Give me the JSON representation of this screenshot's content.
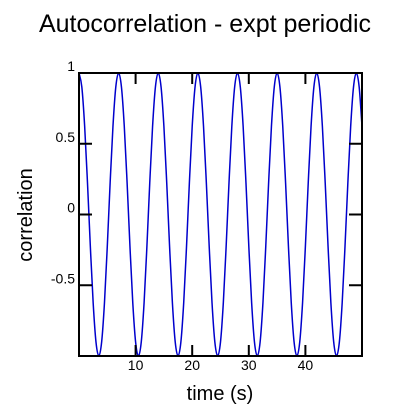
{
  "chart_data": {
    "type": "line",
    "title": "Autocorrelation - expt periodic",
    "xlabel": "time (s)",
    "ylabel": "correlation",
    "xlim": [
      0,
      50
    ],
    "ylim": [
      -1,
      1
    ],
    "xticks": [
      10,
      20,
      30,
      40
    ],
    "yticks": [
      -0.5,
      0,
      0.5,
      1
    ],
    "grid": false,
    "series": [
      {
        "color": "#0000cc",
        "x": [
          0,
          0.5,
          1,
          1.5,
          2,
          2.5,
          3,
          3.5,
          4,
          4.5,
          5,
          5.5,
          6,
          6.5,
          7,
          7.5,
          8,
          8.5,
          9,
          9.5,
          10,
          10.5,
          11,
          11.5,
          12,
          12.5,
          13,
          13.5,
          14,
          14.5,
          15,
          15.5,
          16,
          16.5,
          17,
          17.5,
          18,
          18.5,
          19,
          19.5,
          20,
          20.5,
          21,
          21.5,
          22,
          22.5,
          23,
          23.5,
          24,
          24.5,
          25,
          25.5,
          26,
          26.5,
          27,
          27.5,
          28,
          28.5,
          29,
          29.5,
          30,
          30.5,
          31,
          31.5,
          32,
          32.5,
          33,
          33.5,
          34,
          34.5,
          35,
          35.5,
          36,
          36.5,
          37,
          37.5,
          38,
          38.5,
          39,
          39.5,
          40,
          40.5,
          41,
          41.5,
          42,
          42.5,
          43,
          43.5,
          44,
          44.5,
          45,
          45.5,
          46,
          46.5,
          47,
          47.5,
          48,
          48.5,
          49,
          49.5,
          50
        ],
        "values": [
          1,
          0.901,
          0.623,
          0.223,
          -0.223,
          -0.623,
          -0.901,
          -1,
          -0.901,
          -0.623,
          -0.223,
          0.223,
          0.623,
          0.901,
          1,
          0.901,
          0.623,
          0.223,
          -0.223,
          -0.623,
          -0.901,
          -1,
          -0.901,
          -0.623,
          -0.223,
          0.223,
          0.623,
          0.901,
          1,
          0.901,
          0.623,
          0.223,
          -0.223,
          -0.623,
          -0.901,
          -1,
          -0.901,
          -0.623,
          -0.223,
          0.223,
          0.623,
          0.901,
          1,
          0.901,
          0.623,
          0.223,
          -0.223,
          -0.623,
          -0.901,
          -1,
          -0.901,
          -0.623,
          -0.223,
          0.223,
          0.623,
          0.901,
          1,
          0.901,
          0.623,
          0.223,
          -0.223,
          -0.623,
          -0.901,
          -1,
          -0.901,
          -0.623,
          -0.223,
          0.223,
          0.623,
          0.901,
          1,
          0.901,
          0.623,
          0.223,
          -0.223,
          -0.623,
          -0.901,
          -1,
          -0.901,
          -0.623,
          -0.223,
          0.223,
          0.623,
          0.901,
          1,
          0.901,
          0.623,
          0.223,
          -0.223,
          -0.623,
          -0.901,
          -1,
          -0.901,
          -0.623,
          -0.223,
          0.223,
          0.623,
          0.901,
          1,
          0.901,
          0.623
        ]
      }
    ]
  }
}
